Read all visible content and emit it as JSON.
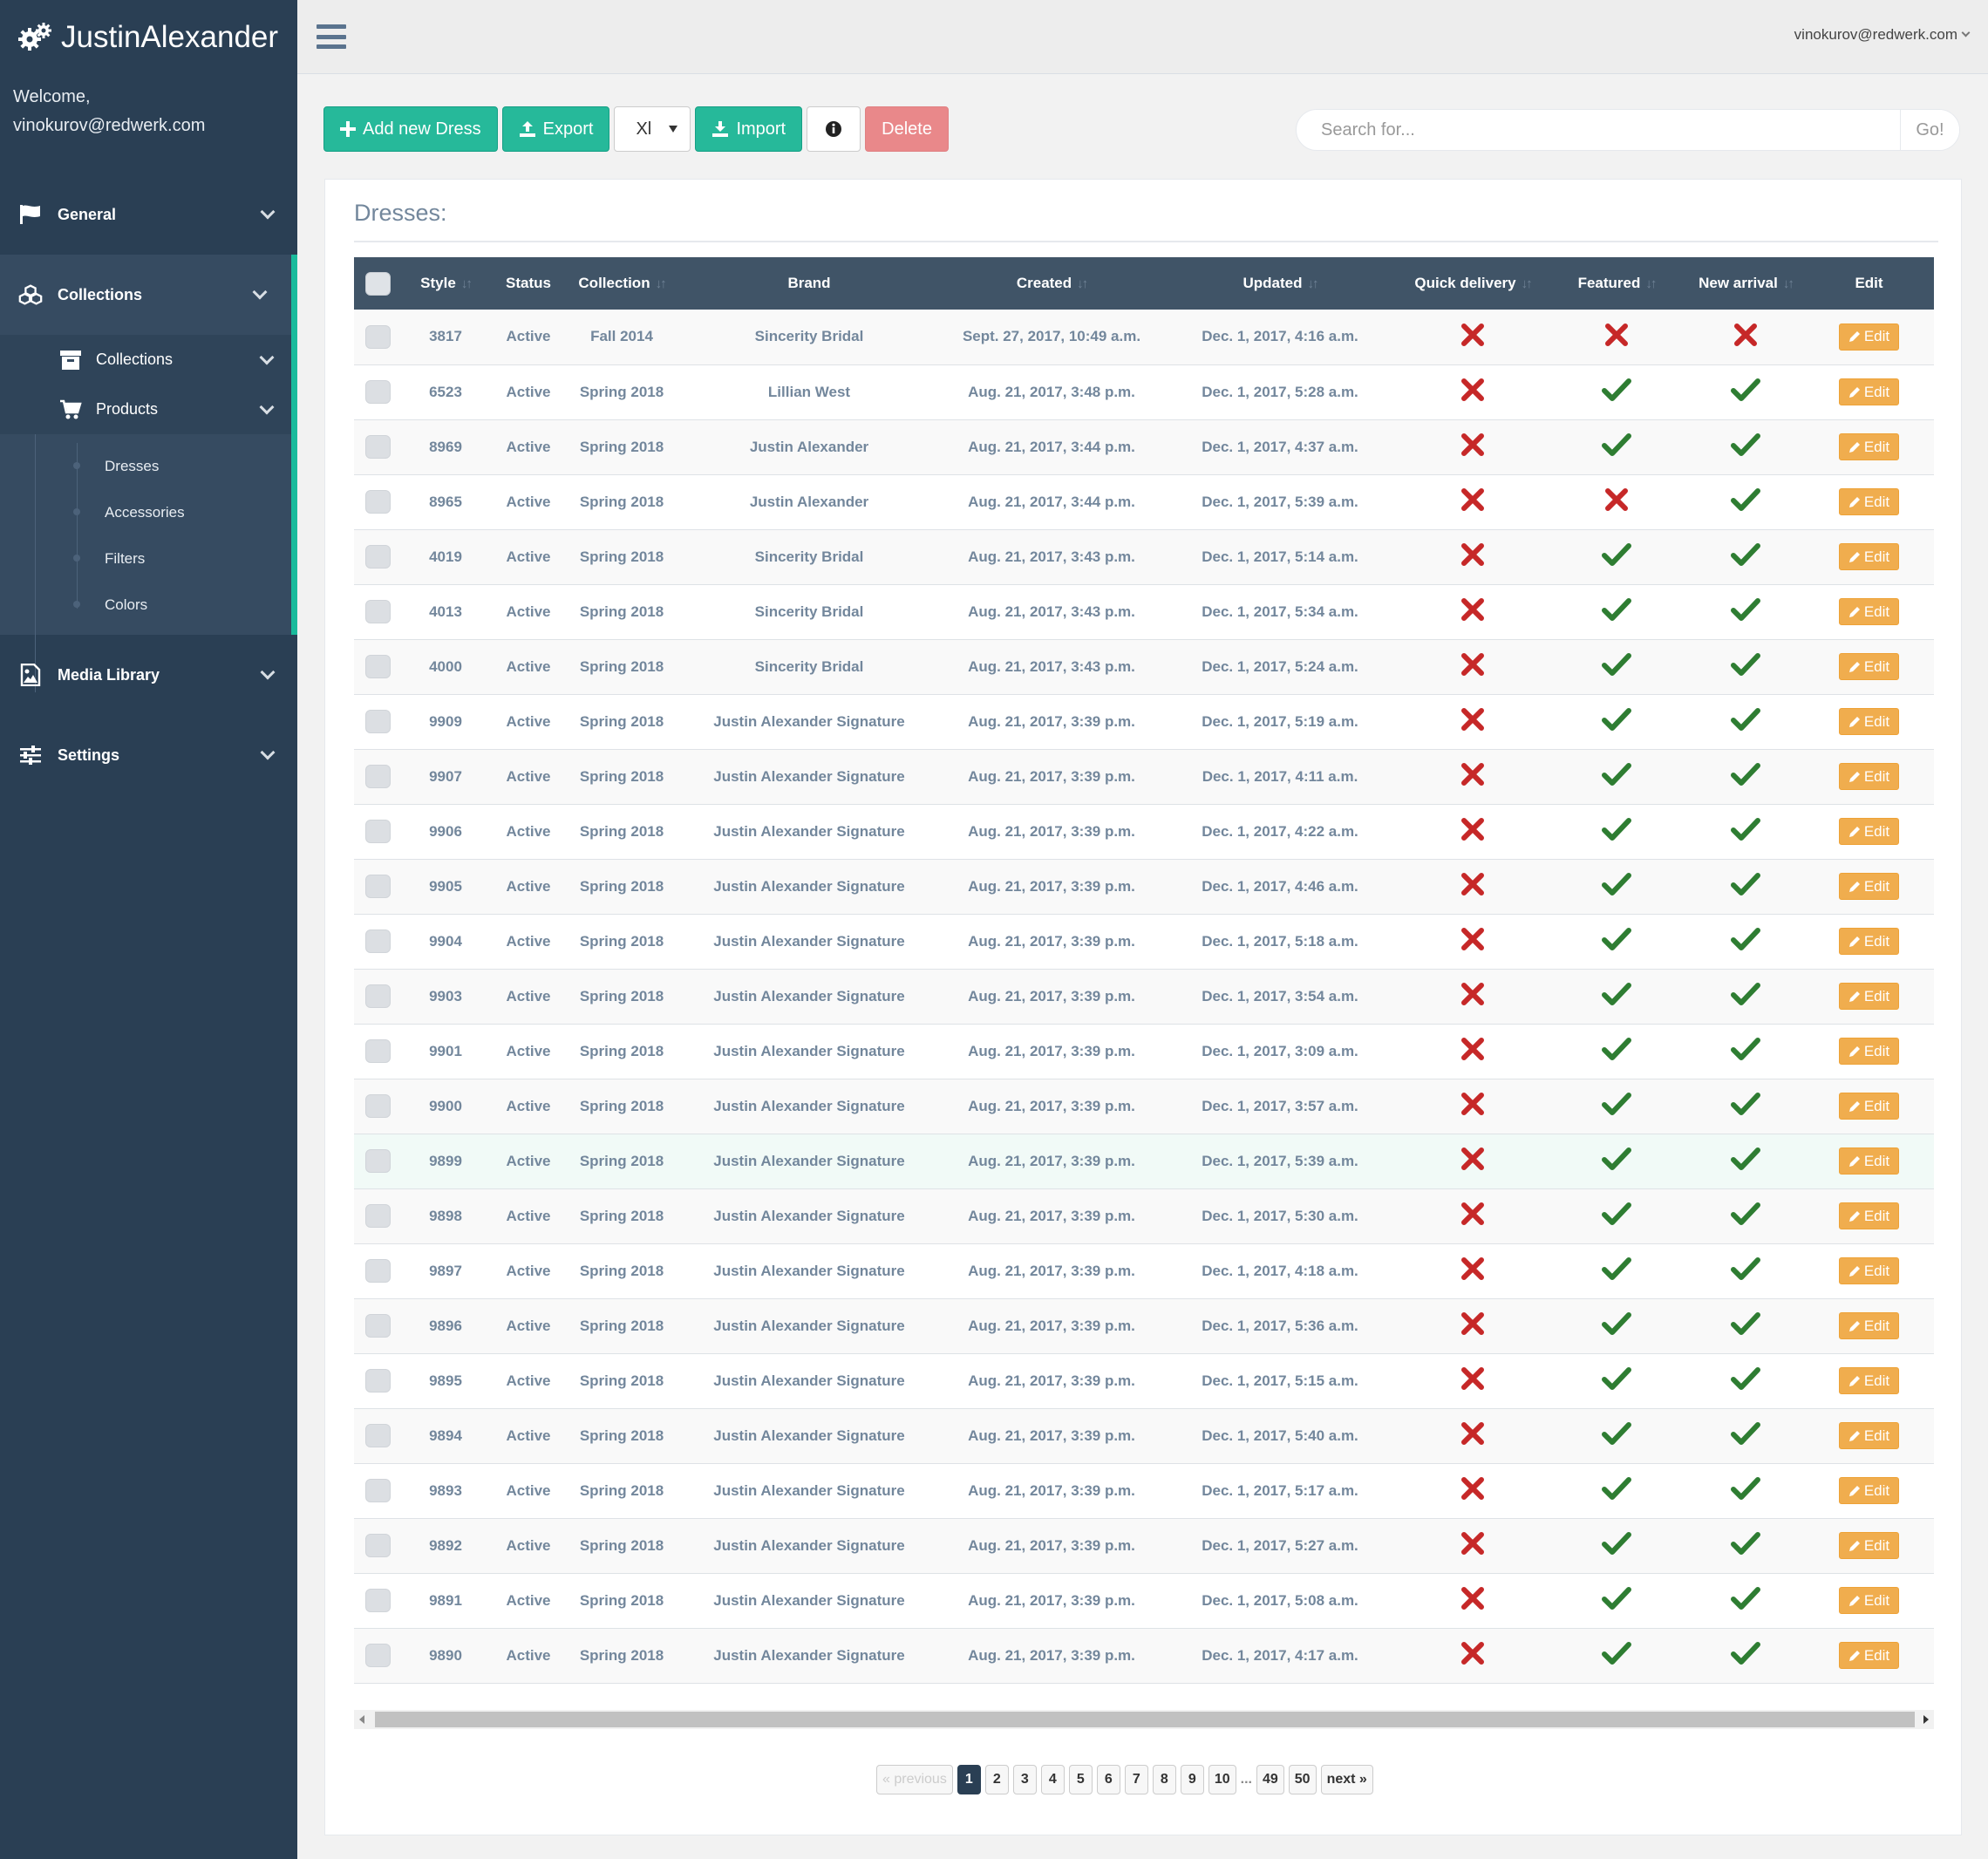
{
  "app": {
    "brand": "JustinAlexander",
    "welcome_label": "Welcome,",
    "user_email": "vinokurov@redwerk.com"
  },
  "sidebar": {
    "general": "General",
    "collections": "Collections",
    "sub_collections": "Collections",
    "products": "Products",
    "leaves": [
      "Dresses",
      "Accessories",
      "Filters",
      "Colors"
    ],
    "media_library": "Media Library",
    "settings": "Settings"
  },
  "toolbar": {
    "add_label": "Add new Dress",
    "export_label": "Export",
    "format_value": "Xl",
    "import_label": "Import",
    "delete_label": "Delete"
  },
  "search": {
    "placeholder": "Search for...",
    "go_label": "Go!"
  },
  "panel": {
    "title": "Dresses:"
  },
  "table": {
    "columns": [
      "Style",
      "Status",
      "Collection",
      "Brand",
      "Created",
      "Updated",
      "Quick delivery",
      "Featured",
      "New arrival",
      "Edit"
    ],
    "edit_label": "Edit",
    "rows": [
      {
        "style": "3817",
        "status": "Active",
        "collection": "Fall 2014",
        "brand": "Sincerity Bridal",
        "created": "Sept. 27, 2017, 10:49 a.m.",
        "updated": "Dec. 1, 2017, 4:16 a.m.",
        "quick": false,
        "featured": false,
        "new": false
      },
      {
        "style": "6523",
        "status": "Active",
        "collection": "Spring 2018",
        "brand": "Lillian West",
        "created": "Aug. 21, 2017, 3:48 p.m.",
        "updated": "Dec. 1, 2017, 5:28 a.m.",
        "quick": false,
        "featured": true,
        "new": true
      },
      {
        "style": "8969",
        "status": "Active",
        "collection": "Spring 2018",
        "brand": "Justin Alexander",
        "created": "Aug. 21, 2017, 3:44 p.m.",
        "updated": "Dec. 1, 2017, 4:37 a.m.",
        "quick": false,
        "featured": true,
        "new": true
      },
      {
        "style": "8965",
        "status": "Active",
        "collection": "Spring 2018",
        "brand": "Justin Alexander",
        "created": "Aug. 21, 2017, 3:44 p.m.",
        "updated": "Dec. 1, 2017, 5:39 a.m.",
        "quick": false,
        "featured": false,
        "new": true
      },
      {
        "style": "4019",
        "status": "Active",
        "collection": "Spring 2018",
        "brand": "Sincerity Bridal",
        "created": "Aug. 21, 2017, 3:43 p.m.",
        "updated": "Dec. 1, 2017, 5:14 a.m.",
        "quick": false,
        "featured": true,
        "new": true
      },
      {
        "style": "4013",
        "status": "Active",
        "collection": "Spring 2018",
        "brand": "Sincerity Bridal",
        "created": "Aug. 21, 2017, 3:43 p.m.",
        "updated": "Dec. 1, 2017, 5:34 a.m.",
        "quick": false,
        "featured": true,
        "new": true
      },
      {
        "style": "4000",
        "status": "Active",
        "collection": "Spring 2018",
        "brand": "Sincerity Bridal",
        "created": "Aug. 21, 2017, 3:43 p.m.",
        "updated": "Dec. 1, 2017, 5:24 a.m.",
        "quick": false,
        "featured": true,
        "new": true
      },
      {
        "style": "9909",
        "status": "Active",
        "collection": "Spring 2018",
        "brand": "Justin Alexander Signature",
        "created": "Aug. 21, 2017, 3:39 p.m.",
        "updated": "Dec. 1, 2017, 5:19 a.m.",
        "quick": false,
        "featured": true,
        "new": true
      },
      {
        "style": "9907",
        "status": "Active",
        "collection": "Spring 2018",
        "brand": "Justin Alexander Signature",
        "created": "Aug. 21, 2017, 3:39 p.m.",
        "updated": "Dec. 1, 2017, 4:11 a.m.",
        "quick": false,
        "featured": true,
        "new": true
      },
      {
        "style": "9906",
        "status": "Active",
        "collection": "Spring 2018",
        "brand": "Justin Alexander Signature",
        "created": "Aug. 21, 2017, 3:39 p.m.",
        "updated": "Dec. 1, 2017, 4:22 a.m.",
        "quick": false,
        "featured": true,
        "new": true
      },
      {
        "style": "9905",
        "status": "Active",
        "collection": "Spring 2018",
        "brand": "Justin Alexander Signature",
        "created": "Aug. 21, 2017, 3:39 p.m.",
        "updated": "Dec. 1, 2017, 4:46 a.m.",
        "quick": false,
        "featured": true,
        "new": true
      },
      {
        "style": "9904",
        "status": "Active",
        "collection": "Spring 2018",
        "brand": "Justin Alexander Signature",
        "created": "Aug. 21, 2017, 3:39 p.m.",
        "updated": "Dec. 1, 2017, 5:18 a.m.",
        "quick": false,
        "featured": true,
        "new": true
      },
      {
        "style": "9903",
        "status": "Active",
        "collection": "Spring 2018",
        "brand": "Justin Alexander Signature",
        "created": "Aug. 21, 2017, 3:39 p.m.",
        "updated": "Dec. 1, 2017, 3:54 a.m.",
        "quick": false,
        "featured": true,
        "new": true
      },
      {
        "style": "9901",
        "status": "Active",
        "collection": "Spring 2018",
        "brand": "Justin Alexander Signature",
        "created": "Aug. 21, 2017, 3:39 p.m.",
        "updated": "Dec. 1, 2017, 3:09 a.m.",
        "quick": false,
        "featured": true,
        "new": true
      },
      {
        "style": "9900",
        "status": "Active",
        "collection": "Spring 2018",
        "brand": "Justin Alexander Signature",
        "created": "Aug. 21, 2017, 3:39 p.m.",
        "updated": "Dec. 1, 2017, 3:57 a.m.",
        "quick": false,
        "featured": true,
        "new": true
      },
      {
        "style": "9899",
        "status": "Active",
        "collection": "Spring 2018",
        "brand": "Justin Alexander Signature",
        "created": "Aug. 21, 2017, 3:39 p.m.",
        "updated": "Dec. 1, 2017, 5:39 a.m.",
        "quick": false,
        "featured": true,
        "new": true
      },
      {
        "style": "9898",
        "status": "Active",
        "collection": "Spring 2018",
        "brand": "Justin Alexander Signature",
        "created": "Aug. 21, 2017, 3:39 p.m.",
        "updated": "Dec. 1, 2017, 5:30 a.m.",
        "quick": false,
        "featured": true,
        "new": true
      },
      {
        "style": "9897",
        "status": "Active",
        "collection": "Spring 2018",
        "brand": "Justin Alexander Signature",
        "created": "Aug. 21, 2017, 3:39 p.m.",
        "updated": "Dec. 1, 2017, 4:18 a.m.",
        "quick": false,
        "featured": true,
        "new": true
      },
      {
        "style": "9896",
        "status": "Active",
        "collection": "Spring 2018",
        "brand": "Justin Alexander Signature",
        "created": "Aug. 21, 2017, 3:39 p.m.",
        "updated": "Dec. 1, 2017, 5:36 a.m.",
        "quick": false,
        "featured": true,
        "new": true
      },
      {
        "style": "9895",
        "status": "Active",
        "collection": "Spring 2018",
        "brand": "Justin Alexander Signature",
        "created": "Aug. 21, 2017, 3:39 p.m.",
        "updated": "Dec. 1, 2017, 5:15 a.m.",
        "quick": false,
        "featured": true,
        "new": true
      },
      {
        "style": "9894",
        "status": "Active",
        "collection": "Spring 2018",
        "brand": "Justin Alexander Signature",
        "created": "Aug. 21, 2017, 3:39 p.m.",
        "updated": "Dec. 1, 2017, 5:40 a.m.",
        "quick": false,
        "featured": true,
        "new": true
      },
      {
        "style": "9893",
        "status": "Active",
        "collection": "Spring 2018",
        "brand": "Justin Alexander Signature",
        "created": "Aug. 21, 2017, 3:39 p.m.",
        "updated": "Dec. 1, 2017, 5:17 a.m.",
        "quick": false,
        "featured": true,
        "new": true
      },
      {
        "style": "9892",
        "status": "Active",
        "collection": "Spring 2018",
        "brand": "Justin Alexander Signature",
        "created": "Aug. 21, 2017, 3:39 p.m.",
        "updated": "Dec. 1, 2017, 5:27 a.m.",
        "quick": false,
        "featured": true,
        "new": true
      },
      {
        "style": "9891",
        "status": "Active",
        "collection": "Spring 2018",
        "brand": "Justin Alexander Signature",
        "created": "Aug. 21, 2017, 3:39 p.m.",
        "updated": "Dec. 1, 2017, 5:08 a.m.",
        "quick": false,
        "featured": true,
        "new": true
      },
      {
        "style": "9890",
        "status": "Active",
        "collection": "Spring 2018",
        "brand": "Justin Alexander Signature",
        "created": "Aug. 21, 2017, 3:39 p.m.",
        "updated": "Dec. 1, 2017, 4:17 a.m.",
        "quick": false,
        "featured": true,
        "new": true
      }
    ]
  },
  "pagination": {
    "previous": "« previous",
    "pages": [
      "1",
      "2",
      "3",
      "4",
      "5",
      "6",
      "7",
      "8",
      "9",
      "10"
    ],
    "ellipsis": "...",
    "tail_pages": [
      "49",
      "50"
    ],
    "current": "1",
    "next": "next »"
  },
  "colors": {
    "sidebar": "#2a3f54",
    "accent_green": "#26b99a",
    "delete_red": "#e9888a",
    "edit_orange": "#f0ad4e",
    "check_green": "#2e7d32",
    "cross_red": "#c62828"
  }
}
